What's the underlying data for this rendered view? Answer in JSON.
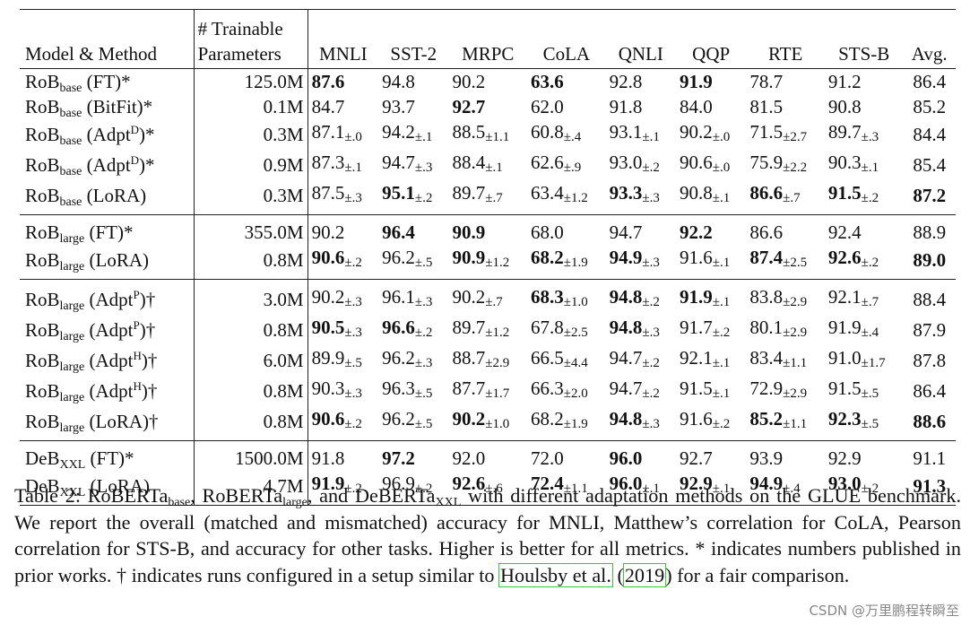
{
  "table": {
    "header": {
      "model_method": "Model & Method",
      "trainable_line1": "# Trainable",
      "trainable_line2": "Parameters",
      "tasks": [
        "MNLI",
        "SST-2",
        "MRPC",
        "CoLA",
        "QNLI",
        "QQP",
        "RTE",
        "STS-B",
        "Avg."
      ]
    },
    "groups": [
      {
        "rows": [
          {
            "model": "RoB",
            "sub": "base",
            "method": "(FT)*",
            "sup": "",
            "params": "125.0M",
            "cells": [
              {
                "v": "87.6",
                "b": true
              },
              {
                "v": "94.8"
              },
              {
                "v": "90.2"
              },
              {
                "v": "63.6",
                "b": true
              },
              {
                "v": "92.8"
              },
              {
                "v": "91.9",
                "b": true
              },
              {
                "v": "78.7"
              },
              {
                "v": "91.2"
              },
              {
                "v": "86.4"
              }
            ]
          },
          {
            "model": "RoB",
            "sub": "base",
            "method": "(BitFit)*",
            "sup": "",
            "params": "0.1M",
            "cells": [
              {
                "v": "84.7"
              },
              {
                "v": "93.7"
              },
              {
                "v": "92.7",
                "b": true
              },
              {
                "v": "62.0"
              },
              {
                "v": "91.8"
              },
              {
                "v": "84.0"
              },
              {
                "v": "81.5"
              },
              {
                "v": "90.8"
              },
              {
                "v": "85.2"
              }
            ]
          },
          {
            "model": "RoB",
            "sub": "base",
            "method": "(Adpt",
            "sup": "D",
            "tail": ")*",
            "params": "0.3M",
            "cells": [
              {
                "v": "87.1",
                "pm": "±.0"
              },
              {
                "v": "94.2",
                "pm": "±.1"
              },
              {
                "v": "88.5",
                "pm": "±1.1"
              },
              {
                "v": "60.8",
                "pm": "±.4"
              },
              {
                "v": "93.1",
                "pm": "±.1"
              },
              {
                "v": "90.2",
                "pm": "±.0"
              },
              {
                "v": "71.5",
                "pm": "±2.7"
              },
              {
                "v": "89.7",
                "pm": "±.3"
              },
              {
                "v": "84.4"
              }
            ]
          },
          {
            "model": "RoB",
            "sub": "base",
            "method": "(Adpt",
            "sup": "D",
            "tail": ")*",
            "params": "0.9M",
            "cells": [
              {
                "v": "87.3",
                "pm": "±.1"
              },
              {
                "v": "94.7",
                "pm": "±.3"
              },
              {
                "v": "88.4",
                "pm": "±.1"
              },
              {
                "v": "62.6",
                "pm": "±.9"
              },
              {
                "v": "93.0",
                "pm": "±.2"
              },
              {
                "v": "90.6",
                "pm": "±.0"
              },
              {
                "v": "75.9",
                "pm": "±2.2"
              },
              {
                "v": "90.3",
                "pm": "±.1"
              },
              {
                "v": "85.4"
              }
            ]
          },
          {
            "model": "RoB",
            "sub": "base",
            "method": "(LoRA)",
            "sup": "",
            "params": "0.3M",
            "cells": [
              {
                "v": "87.5",
                "pm": "±.3"
              },
              {
                "v": "95.1",
                "pm": "±.2",
                "b": true
              },
              {
                "v": "89.7",
                "pm": "±.7"
              },
              {
                "v": "63.4",
                "pm": "±1.2"
              },
              {
                "v": "93.3",
                "pm": "±.3",
                "b": true
              },
              {
                "v": "90.8",
                "pm": "±.1"
              },
              {
                "v": "86.6",
                "pm": "±.7",
                "b": true
              },
              {
                "v": "91.5",
                "pm": "±.2",
                "b": true
              },
              {
                "v": "87.2",
                "b": true
              }
            ]
          }
        ]
      },
      {
        "rows": [
          {
            "model": "RoB",
            "sub": "large",
            "method": "(FT)*",
            "sup": "",
            "params": "355.0M",
            "cells": [
              {
                "v": "90.2"
              },
              {
                "v": "96.4",
                "b": true
              },
              {
                "v": "90.9",
                "b": true
              },
              {
                "v": "68.0"
              },
              {
                "v": "94.7"
              },
              {
                "v": "92.2",
                "b": true
              },
              {
                "v": "86.6"
              },
              {
                "v": "92.4"
              },
              {
                "v": "88.9"
              }
            ]
          },
          {
            "model": "RoB",
            "sub": "large",
            "method": "(LoRA)",
            "sup": "",
            "params": "0.8M",
            "cells": [
              {
                "v": "90.6",
                "pm": "±.2",
                "b": true
              },
              {
                "v": "96.2",
                "pm": "±.5"
              },
              {
                "v": "90.9",
                "pm": "±1.2",
                "b": true
              },
              {
                "v": "68.2",
                "pm": "±1.9",
                "b": true
              },
              {
                "v": "94.9",
                "pm": "±.3",
                "b": true
              },
              {
                "v": "91.6",
                "pm": "±.1"
              },
              {
                "v": "87.4",
                "pm": "±2.5",
                "b": true
              },
              {
                "v": "92.6",
                "pm": "±.2",
                "b": true
              },
              {
                "v": "89.0",
                "b": true
              }
            ]
          }
        ]
      },
      {
        "rows": [
          {
            "model": "RoB",
            "sub": "large",
            "method": "(Adpt",
            "sup": "P",
            "tail": ")†",
            "params": "3.0M",
            "cells": [
              {
                "v": "90.2",
                "pm": "±.3"
              },
              {
                "v": "96.1",
                "pm": "±.3"
              },
              {
                "v": "90.2",
                "pm": "±.7"
              },
              {
                "v": "68.3",
                "pm": "±1.0",
                "b": true
              },
              {
                "v": "94.8",
                "pm": "±.2",
                "b": true
              },
              {
                "v": "91.9",
                "pm": "±.1",
                "b": true
              },
              {
                "v": "83.8",
                "pm": "±2.9"
              },
              {
                "v": "92.1",
                "pm": "±.7"
              },
              {
                "v": "88.4"
              }
            ]
          },
          {
            "model": "RoB",
            "sub": "large",
            "method": "(Adpt",
            "sup": "P",
            "tail": ")†",
            "params": "0.8M",
            "cells": [
              {
                "v": "90.5",
                "pm": "±.3",
                "b": true
              },
              {
                "v": "96.6",
                "pm": "±.2",
                "b": true
              },
              {
                "v": "89.7",
                "pm": "±1.2"
              },
              {
                "v": "67.8",
                "pm": "±2.5"
              },
              {
                "v": "94.8",
                "pm": "±.3",
                "b": true
              },
              {
                "v": "91.7",
                "pm": "±.2"
              },
              {
                "v": "80.1",
                "pm": "±2.9"
              },
              {
                "v": "91.9",
                "pm": "±.4"
              },
              {
                "v": "87.9"
              }
            ]
          },
          {
            "model": "RoB",
            "sub": "large",
            "method": "(Adpt",
            "sup": "H",
            "tail": ")†",
            "params": "6.0M",
            "cells": [
              {
                "v": "89.9",
                "pm": "±.5"
              },
              {
                "v": "96.2",
                "pm": "±.3"
              },
              {
                "v": "88.7",
                "pm": "±2.9"
              },
              {
                "v": "66.5",
                "pm": "±4.4"
              },
              {
                "v": "94.7",
                "pm": "±.2"
              },
              {
                "v": "92.1",
                "pm": "±.1"
              },
              {
                "v": "83.4",
                "pm": "±1.1"
              },
              {
                "v": "91.0",
                "pm": "±1.7"
              },
              {
                "v": "87.8"
              }
            ]
          },
          {
            "model": "RoB",
            "sub": "large",
            "method": "(Adpt",
            "sup": "H",
            "tail": ")†",
            "params": "0.8M",
            "cells": [
              {
                "v": "90.3",
                "pm": "±.3"
              },
              {
                "v": "96.3",
                "pm": "±.5"
              },
              {
                "v": "87.7",
                "pm": "±1.7"
              },
              {
                "v": "66.3",
                "pm": "±2.0"
              },
              {
                "v": "94.7",
                "pm": "±.2"
              },
              {
                "v": "91.5",
                "pm": "±.1"
              },
              {
                "v": "72.9",
                "pm": "±2.9"
              },
              {
                "v": "91.5",
                "pm": "±.5"
              },
              {
                "v": "86.4"
              }
            ]
          },
          {
            "model": "RoB",
            "sub": "large",
            "method": "(LoRA)†",
            "sup": "",
            "params": "0.8M",
            "cells": [
              {
                "v": "90.6",
                "pm": "±.2",
                "b": true
              },
              {
                "v": "96.2",
                "pm": "±.5"
              },
              {
                "v": "90.2",
                "pm": "±1.0",
                "b": true
              },
              {
                "v": "68.2",
                "pm": "±1.9"
              },
              {
                "v": "94.8",
                "pm": "±.3",
                "b": true
              },
              {
                "v": "91.6",
                "pm": "±.2"
              },
              {
                "v": "85.2",
                "pm": "±1.1",
                "b": true
              },
              {
                "v": "92.3",
                "pm": "±.5",
                "b": true
              },
              {
                "v": "88.6",
                "b": true
              }
            ]
          }
        ]
      },
      {
        "rows": [
          {
            "model": "DeB",
            "sub": "XXL",
            "method": "(FT)*",
            "sup": "",
            "params": "1500.0M",
            "cells": [
              {
                "v": "91.8"
              },
              {
                "v": "97.2",
                "b": true
              },
              {
                "v": "92.0"
              },
              {
                "v": "72.0"
              },
              {
                "v": "96.0",
                "b": true
              },
              {
                "v": "92.7"
              },
              {
                "v": "93.9"
              },
              {
                "v": "92.9"
              },
              {
                "v": "91.1"
              }
            ]
          },
          {
            "model": "DeB",
            "sub": "XXL",
            "method": "(LoRA)",
            "sup": "",
            "params": "4.7M",
            "cells": [
              {
                "v": "91.9",
                "pm": "±.2",
                "b": true
              },
              {
                "v": "96.9",
                "pm": "±.2"
              },
              {
                "v": "92.6",
                "pm": "±.6",
                "b": true
              },
              {
                "v": "72.4",
                "pm": "±1.1",
                "b": true
              },
              {
                "v": "96.0",
                "pm": "±.1",
                "b": true
              },
              {
                "v": "92.9",
                "pm": "±.1",
                "b": true
              },
              {
                "v": "94.9",
                "pm": "±.4",
                "b": true
              },
              {
                "v": "93.0",
                "pm": "±.2",
                "b": true
              },
              {
                "v": "91.3",
                "b": true
              }
            ]
          }
        ]
      }
    ]
  },
  "caption": {
    "p1": "Table 2: RoBERTa",
    "s1": "base",
    "p2": ", RoBERTa",
    "s2": "large",
    "p3": ", and DeBERTa",
    "s3": "XXL",
    "p4": " with different adaptation methods on the GLUE benchmark. We report the overall (matched and mismatched) accuracy for MNLI, Matthew’s correlation for CoLA, Pearson correlation for STS-B, and accuracy for other tasks. Higher is better for all metrics. * indicates numbers published in prior works. † indicates runs configured in a setup similar to ",
    "cite_author": "Houlsby et al.",
    "cite_open": " (",
    "cite_year": "2019",
    "cite_close": ")",
    "p5": " for a fair comparison."
  },
  "watermark": "CSDN @万里鹏程转瞬至"
}
